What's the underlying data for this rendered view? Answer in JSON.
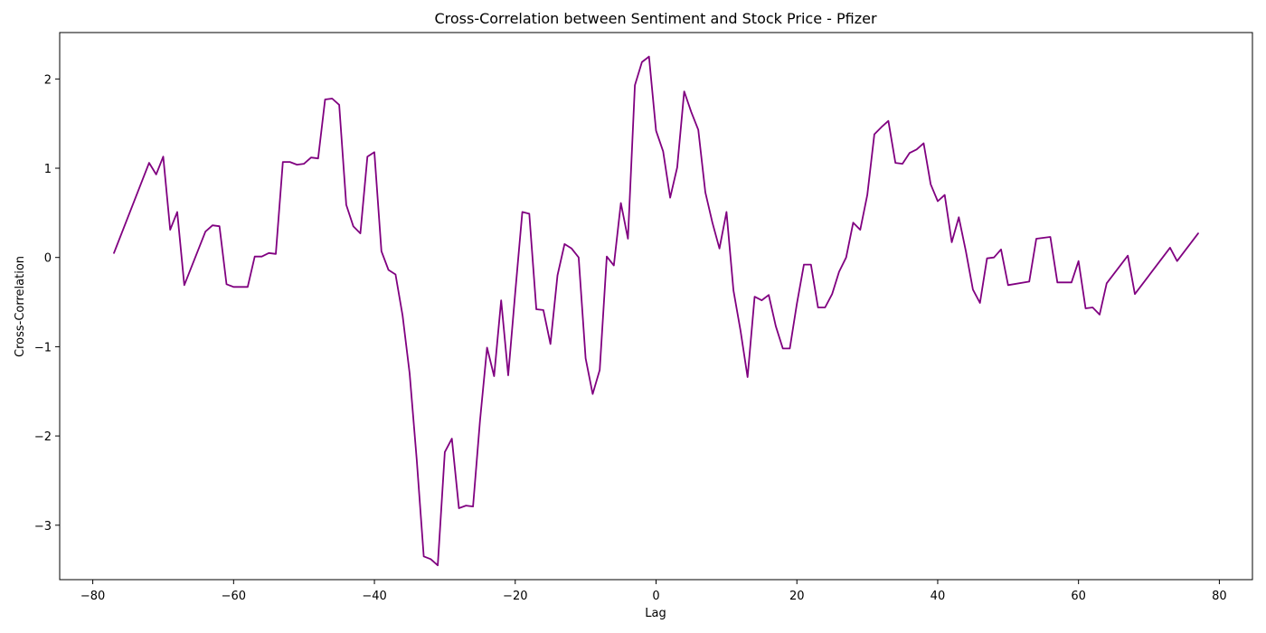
{
  "chart_data": {
    "type": "line",
    "title": "Cross-Correlation between Sentiment and Stock Price - Pfizer",
    "xlabel": "Lag",
    "ylabel": "Cross-Correlation",
    "xlim": [
      -84.7,
      84.7
    ],
    "ylim": [
      -3.61,
      2.52
    ],
    "xticks": [
      -80,
      -60,
      -40,
      -20,
      0,
      20,
      40,
      60,
      80
    ],
    "yticks": [
      -3,
      -2,
      -1,
      0,
      1,
      2
    ],
    "xtick_labels": [
      "−80",
      "−60",
      "−40",
      "−20",
      "0",
      "20",
      "40",
      "60",
      "80"
    ],
    "ytick_labels": [
      "−3",
      "−2",
      "−1",
      "0",
      "1",
      "2"
    ],
    "grid": false,
    "series": [
      {
        "color": "#800080",
        "x": [
          -77,
          -72,
          -71,
          -70,
          -69,
          -68,
          -67,
          -64,
          -63,
          -62,
          -61,
          -60,
          -59,
          -58,
          -57,
          -56,
          -55,
          -54,
          -53,
          -52,
          -51,
          -50,
          -49,
          -48,
          -47,
          -46,
          -45,
          -44,
          -43,
          -42,
          -41,
          -40,
          -39,
          -38,
          -37,
          -36,
          -35,
          -34,
          -33,
          -32,
          -31,
          -30,
          -29,
          -28,
          -27,
          -26,
          -25,
          -24,
          -23,
          -22,
          -21,
          -20,
          -19,
          -18,
          -17,
          -16,
          -15,
          -14,
          -13,
          -12,
          -11,
          -10,
          -9,
          -8,
          -7,
          -6,
          -5,
          -4,
          -3,
          -2,
          -1,
          0,
          1,
          2,
          3,
          4,
          5,
          6,
          7,
          8,
          9,
          10,
          11,
          12,
          13,
          14,
          15,
          16,
          17,
          18,
          19,
          20,
          21,
          22,
          23,
          24,
          25,
          26,
          27,
          28,
          29,
          30,
          31,
          32,
          33,
          34,
          35,
          36,
          37,
          38,
          39,
          40,
          41,
          42,
          43,
          44,
          45,
          46,
          47,
          48,
          49,
          50,
          53,
          54,
          55,
          56,
          57,
          58,
          59,
          60,
          61,
          62,
          63,
          64,
          67,
          68,
          73,
          74,
          77
        ],
        "y": [
          0.05,
          1.06,
          0.93,
          1.13,
          0.31,
          0.51,
          -0.31,
          0.29,
          0.36,
          0.35,
          -0.3,
          -0.33,
          -0.33,
          -0.33,
          0.01,
          0.01,
          0.05,
          0.04,
          1.07,
          1.07,
          1.04,
          1.05,
          1.12,
          1.11,
          1.77,
          1.78,
          1.71,
          0.59,
          0.35,
          0.27,
          1.13,
          1.18,
          0.07,
          -0.14,
          -0.19,
          -0.65,
          -1.3,
          -2.26,
          -3.35,
          -3.38,
          -3.45,
          -2.18,
          -2.03,
          -2.81,
          -2.78,
          -2.79,
          -1.83,
          -1.01,
          -1.33,
          -0.48,
          -1.32,
          -0.39,
          0.51,
          0.49,
          -0.58,
          -0.59,
          -0.97,
          -0.2,
          0.15,
          0.1,
          0.0,
          -1.13,
          -1.53,
          -1.26,
          0.01,
          -0.09,
          0.61,
          0.21,
          1.93,
          2.19,
          2.25,
          1.42,
          1.19,
          0.67,
          1.01,
          1.86,
          1.63,
          1.43,
          0.73,
          0.39,
          0.1,
          0.51,
          -0.37,
          -0.82,
          -1.34,
          -0.44,
          -0.48,
          -0.42,
          -0.77,
          -1.02,
          -1.02,
          -0.52,
          -0.08,
          -0.08,
          -0.56,
          -0.56,
          -0.41,
          -0.16,
          0.0,
          0.39,
          0.31,
          0.7,
          1.38,
          1.46,
          1.53,
          1.06,
          1.05,
          1.17,
          1.21,
          1.28,
          0.82,
          0.63,
          0.7,
          0.17,
          0.45,
          0.07,
          -0.36,
          -0.51,
          -0.01,
          0.0,
          0.09,
          -0.31,
          -0.27,
          0.21,
          0.22,
          0.23,
          -0.28,
          -0.28,
          -0.28,
          -0.04,
          -0.57,
          -0.56,
          -0.64,
          -0.29,
          0.02,
          -0.41,
          0.11,
          -0.04,
          0.27
        ]
      }
    ]
  }
}
